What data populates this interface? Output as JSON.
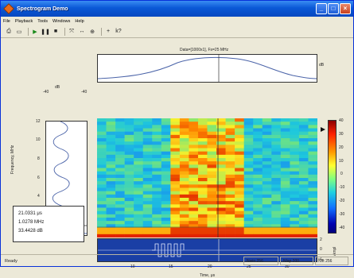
{
  "window": {
    "title": "Spectrogram Demo"
  },
  "menu": [
    "File",
    "Playback",
    "Tools",
    "Windows",
    "Help"
  ],
  "toolbar": {
    "buttons": [
      {
        "name": "print-icon",
        "glyph": "⎙"
      },
      {
        "name": "print-preview-icon",
        "glyph": "🗋"
      },
      {
        "name": "play-icon",
        "glyph": "▶"
      },
      {
        "name": "pause-icon",
        "glyph": "⏸"
      },
      {
        "name": "stop-icon",
        "glyph": "■"
      },
      {
        "name": "zoom-fit-icon",
        "glyph": "⤧"
      },
      {
        "name": "zoom-horizontal-icon",
        "glyph": "⟷"
      },
      {
        "name": "zoom-vertical-icon",
        "glyph": "⦿"
      },
      {
        "name": "crosshair-icon",
        "glyph": "+"
      },
      {
        "name": "help-cursor-icon",
        "glyph": "k?"
      }
    ]
  },
  "plot": {
    "title": "Data=[1000x1], Fs=25 MHz",
    "top_axis_label": "dB",
    "left_axis_units": "dB",
    "left_top_ticks": [
      "-40",
      "-40"
    ],
    "freq_label": "Frequency, MHz",
    "freq_ticks": [
      "12",
      "10",
      "8",
      "6",
      "4",
      "2",
      "0"
    ],
    "time_label": "Time, μs",
    "time_ticks": [
      "10",
      "15",
      "20",
      "25",
      "30"
    ],
    "ampl_label": "Ampl",
    "ampl_ticks": [
      "2",
      "0",
      "-2"
    ],
    "colorbar_ticks": [
      "40",
      "30",
      "20",
      "10",
      "0",
      "-10",
      "-20",
      "-30",
      "-40"
    ]
  },
  "readout": {
    "time": "21.0331 μs",
    "frequency": "1.0278 MHz",
    "power": "33.4428 dB"
  },
  "status": {
    "text": "Ready",
    "nwin": "Nwin 256",
    "nlap": "Nlap 200",
    "nfft": "Nfft 256"
  },
  "colors": {
    "accent_title": "#0a58d6",
    "cursor_line": "#333333"
  }
}
